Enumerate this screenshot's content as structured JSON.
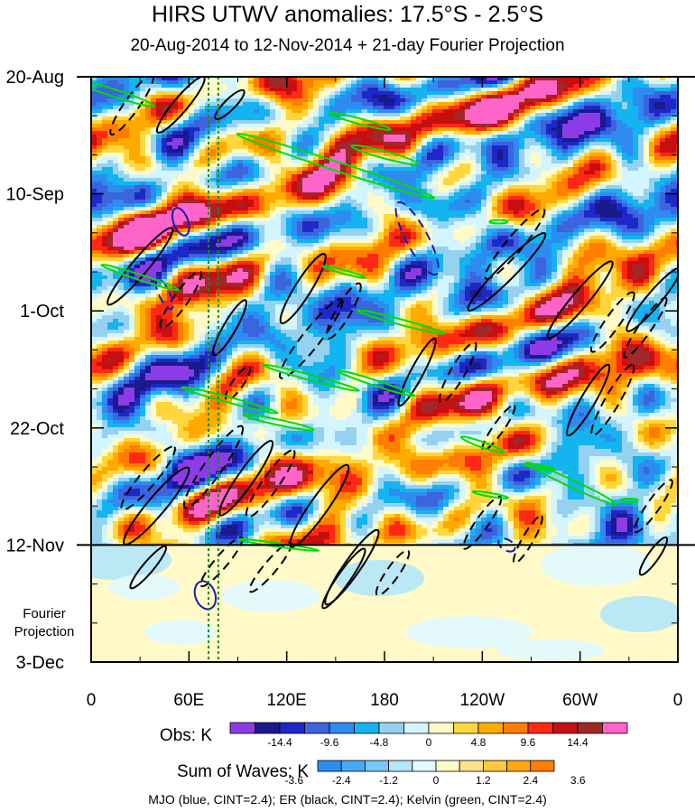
{
  "chart_data": {
    "type": "heatmap",
    "title": "HIRS UTWV anomalies: 17.5°S - 2.5°S",
    "subtitle": "20-Aug-2014 to 12-Nov-2014 + 21-day Fourier Projection",
    "x_axis": {
      "ticks": [
        "0",
        "60E",
        "120E",
        "180",
        "120W",
        "60W",
        "0"
      ],
      "tick_values_deg": [
        0,
        60,
        120,
        180,
        240,
        300,
        360
      ],
      "range": [
        0,
        360
      ]
    },
    "y_axis": {
      "ticks": [
        "20-Aug",
        "10-Sep",
        "1-Oct",
        "22-Oct",
        "12-Nov",
        "3-Dec"
      ],
      "tick_values_day": [
        0,
        21,
        42,
        63,
        84,
        105
      ],
      "range": [
        0,
        105
      ],
      "direction": "time increases downward"
    },
    "observation_end_label": "12-Nov",
    "projection_note": "Fourier Projection",
    "vertical_reference_lines_lon": [
      72,
      78
    ],
    "obs_colorbar": {
      "label": "Obs: K",
      "tick_labels": [
        "-14.4",
        "-9.6",
        "-4.8",
        "0",
        "4.8",
        "9.6",
        "14.4"
      ],
      "colors": [
        "#8c3ce6",
        "#1a1a8c",
        "#1e28c8",
        "#3c64dc",
        "#2d8cf0",
        "#14b4f0",
        "#96d2f0",
        "#d2f5ff",
        "#fffac8",
        "#ffd73c",
        "#ffaa00",
        "#ff7d00",
        "#ff2814",
        "#c80f0f",
        "#a02828",
        "#ff64c8"
      ]
    },
    "waves_colorbar": {
      "label": "Sum of Waves: K",
      "tick_labels": [
        "-3.6",
        "-2.4",
        "-1.2",
        "0",
        "1.2",
        "2.4",
        "3.6"
      ],
      "colors": [
        "#2d8cf0",
        "#46aaf5",
        "#78c8f5",
        "#b4e6fa",
        "#e1f8ff",
        "#fffac8",
        "#ffe18c",
        "#ffc83c",
        "#ffa514",
        "#ff7d00"
      ]
    },
    "contours": [
      {
        "name": "MJO",
        "color": "blue",
        "cint": 2.4
      },
      {
        "name": "ER",
        "color": "black",
        "cint": 2.4
      },
      {
        "name": "Kelvin",
        "color": "green",
        "cint": 2.4
      }
    ]
  },
  "caption": "MJO (blue, CINT=2.4); ER (black, CINT=2.4); Kelvin (green, CINT=2.4)"
}
